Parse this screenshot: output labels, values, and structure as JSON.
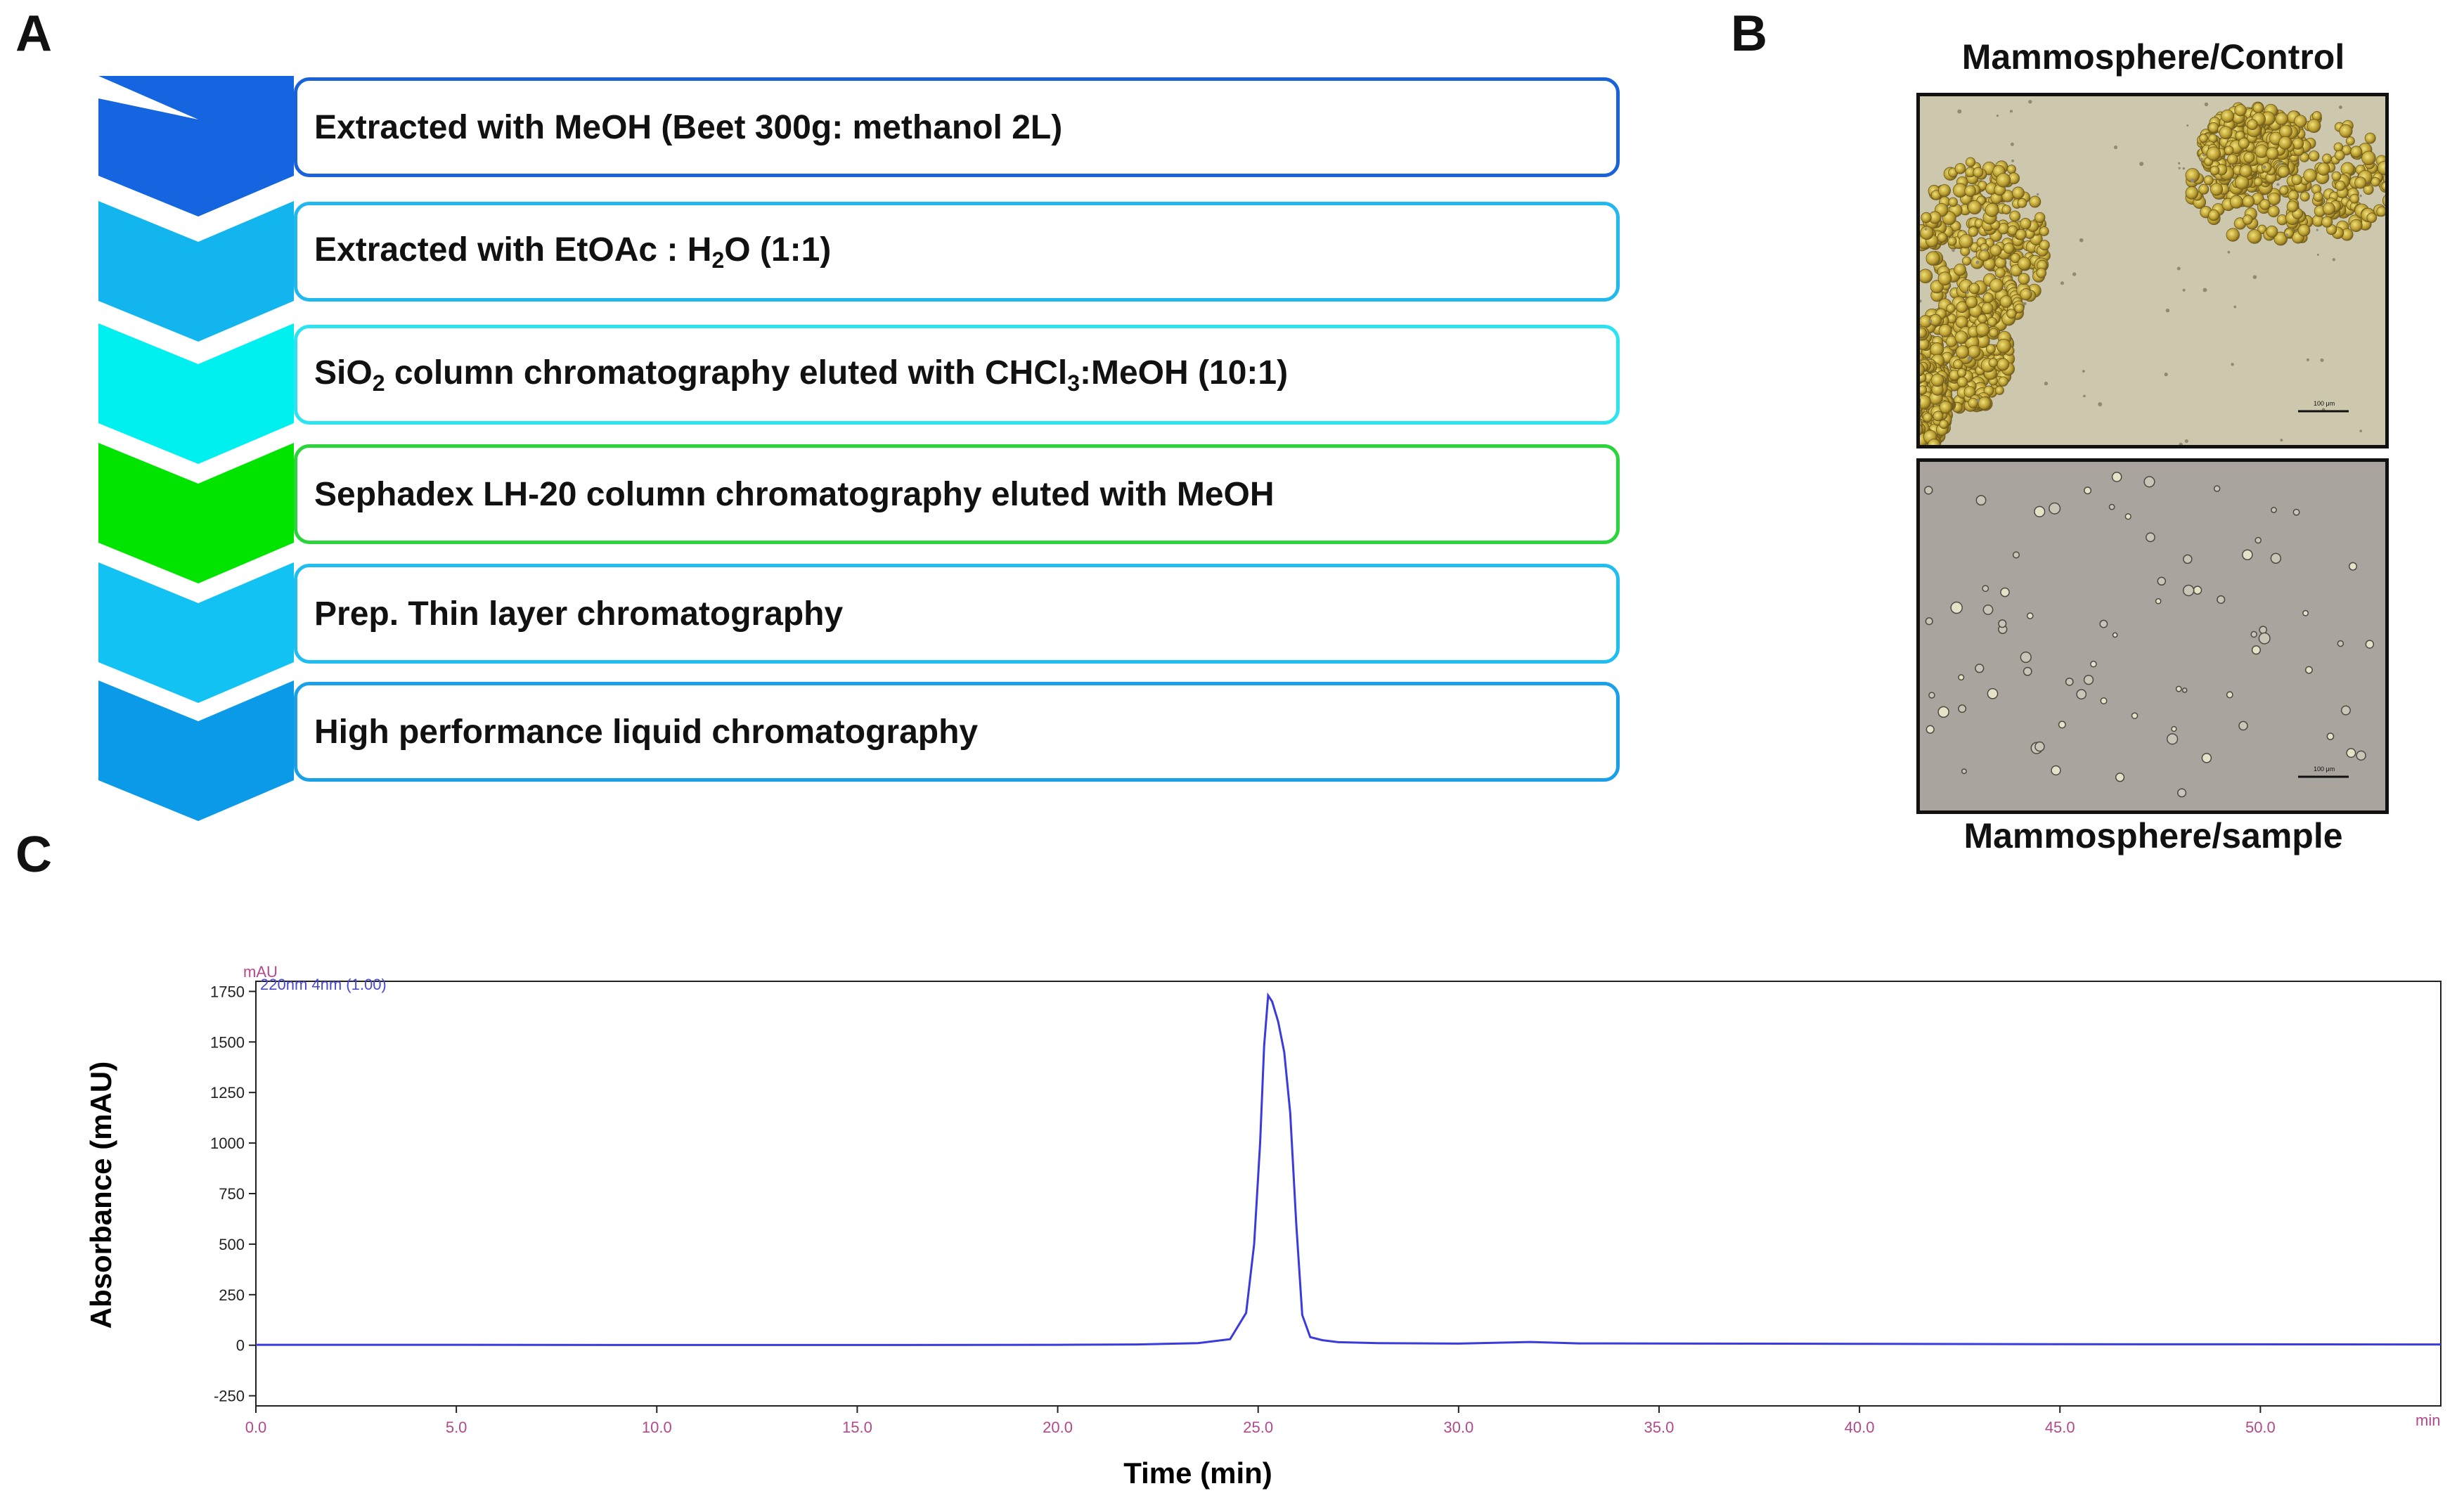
{
  "panels": {
    "a": "A",
    "b": "B",
    "c": "C"
  },
  "steps": [
    {
      "pre": "Extracted with MeOH (Beet 300g: methanol 2L)",
      "sub": "",
      "mid": "",
      "sub2": "",
      "post": "",
      "color": "#1565e0",
      "border": "#1a62d8"
    },
    {
      "pre": "Extracted with EtOAc : H",
      "sub": "2",
      "mid": "O (1:1)",
      "sub2": "",
      "post": "",
      "color": "#12b5ee",
      "border": "#20b8ee"
    },
    {
      "pre": "SiO",
      "sub": "2",
      "mid": " column chromatography eluted with CHCl",
      "sub2": "3",
      "post": ":MeOH (10:1)",
      "color": "#00f0f0",
      "border": "#2ce3f0"
    },
    {
      "pre": "Sephadex LH-20 column chromatography eluted with MeOH",
      "sub": "",
      "mid": "",
      "sub2": "",
      "post": "",
      "color": "#00e400",
      "border": "#2ad43a"
    },
    {
      "pre": "Prep. Thin layer chromatography",
      "sub": "",
      "mid": "",
      "sub2": "",
      "post": "",
      "color": "#12c2f2",
      "border": "#20bef0"
    },
    {
      "pre": "High performance liquid chromatography",
      "sub": "",
      "mid": "",
      "sub2": "",
      "post": "",
      "color": "#0a9ae8",
      "border": "#1aa0e8"
    }
  ],
  "micrographs": {
    "control_title": "Mammosphere/Control",
    "sample_title": "Mammosphere/sample",
    "scale_bar": "100 μm"
  },
  "chart_data": {
    "type": "line",
    "title": "",
    "legend": "220nm 4nm (1.00)",
    "y_unit_label": "mAU",
    "x_unit_label": "min",
    "xlabel": "Time (min)",
    "ylabel": "Absorbance (mAU)",
    "xlim": [
      0,
      54.5
    ],
    "ylim": [
      -300,
      1800
    ],
    "xticks": [
      0,
      5,
      10,
      15,
      20,
      25,
      30,
      35,
      40,
      45,
      50
    ],
    "xtick_labels": [
      "0.0",
      "5.0",
      "10.0",
      "15.0",
      "20.0",
      "25.0",
      "30.0",
      "35.0",
      "40.0",
      "45.0",
      "50.0"
    ],
    "yticks": [
      -250,
      0,
      250,
      500,
      750,
      1000,
      1250,
      1500,
      1750
    ],
    "ytick_labels": [
      "-250",
      "0",
      "250",
      "500",
      "750",
      "1000",
      "1250",
      "1500",
      "1750"
    ],
    "series": [
      {
        "name": "220nm 4nm (1.00)",
        "color": "#3b3bdc",
        "x": [
          0,
          5,
          10,
          15,
          20,
          22,
          23.5,
          24.3,
          24.7,
          24.9,
          25.05,
          25.15,
          25.25,
          25.35,
          25.5,
          25.65,
          25.8,
          25.95,
          26.1,
          26.3,
          26.6,
          27,
          28,
          30,
          31.8,
          33,
          40,
          45,
          54.5
        ],
        "y": [
          2,
          2,
          1,
          1,
          2,
          4,
          10,
          30,
          160,
          500,
          1000,
          1480,
          1730,
          1700,
          1600,
          1450,
          1150,
          600,
          150,
          40,
          25,
          15,
          10,
          8,
          16,
          9,
          7,
          5,
          4
        ]
      }
    ]
  }
}
